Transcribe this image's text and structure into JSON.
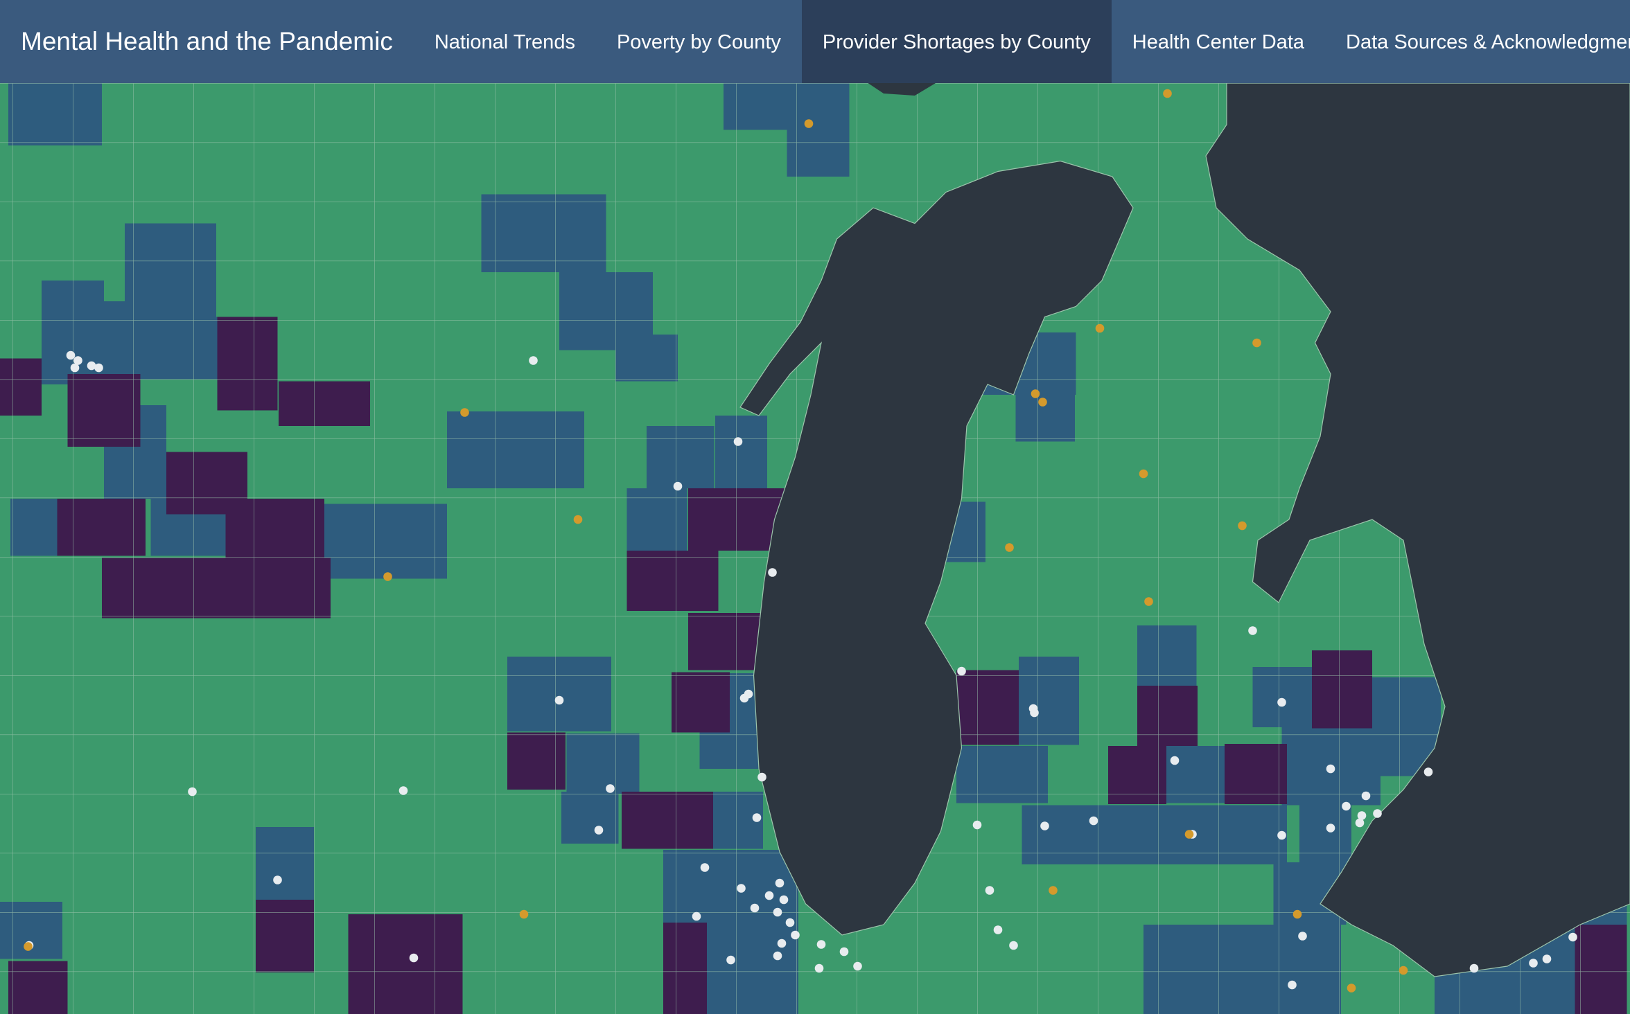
{
  "navbar": {
    "brand": "Mental Health and the Pandemic",
    "items": [
      {
        "label": "National Trends",
        "active": false
      },
      {
        "label": "Poverty by County",
        "active": false
      },
      {
        "label": "Provider Shortages by County",
        "active": true
      },
      {
        "label": "Health Center Data",
        "active": false
      },
      {
        "label": "Data Sources & Acknowledgments",
        "active": false
      }
    ]
  },
  "map": {
    "colors": {
      "low": "#3c9a6c",
      "medium": "#2e5c7e",
      "high": "#3e1d4e",
      "water": "#2d3640",
      "border": "#8fb8a0",
      "health_center": "#e8ecef",
      "other_site": "#d49a2c"
    }
  }
}
